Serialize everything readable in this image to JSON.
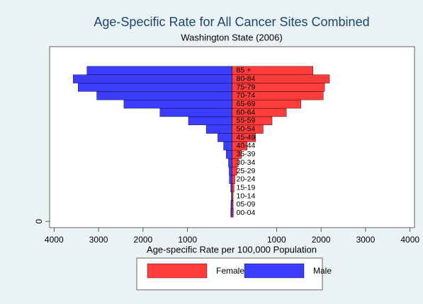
{
  "chart_data": {
    "type": "pyramid",
    "title": "Age-Specific Rate for All Cancer Sites Combined",
    "subtitle": "Washington State (2006)",
    "x_label": "Age-specific Rate per 100,000 Population",
    "categories": [
      "00-04",
      "05-09",
      "10-14",
      "15-19",
      "20-24",
      "25-29",
      "30-34",
      "35-39",
      "40-44",
      "45-49",
      "50-54",
      "55-59",
      "60-64",
      "65-69",
      "70-74",
      "75-79",
      "80-84",
      "85 +"
    ],
    "series": [
      {
        "name": "Female",
        "color": "#ff3c3c",
        "values": [
          30,
          25,
          25,
          45,
          65,
          110,
          140,
          210,
          340,
          530,
          700,
          900,
          1220,
          1550,
          2050,
          2080,
          2190,
          1820
        ]
      },
      {
        "name": "Male",
        "color": "#3c3cff",
        "values": [
          30,
          25,
          15,
          30,
          60,
          65,
          80,
          130,
          190,
          320,
          580,
          980,
          1620,
          2430,
          3040,
          3460,
          3570,
          3260
        ]
      }
    ],
    "xlim": [
      -4100,
      4100
    ],
    "xticks": [
      {
        "value": -4000,
        "label": "4000"
      },
      {
        "value": -3000,
        "label": "3000"
      },
      {
        "value": -2000,
        "label": "2000"
      },
      {
        "value": -1000,
        "label": "1000"
      },
      1000,
      2000,
      3000,
      4000
    ],
    "ylim": [
      -0.75,
      20.85
    ],
    "yticks": [
      0
    ],
    "legend": "bottom"
  }
}
